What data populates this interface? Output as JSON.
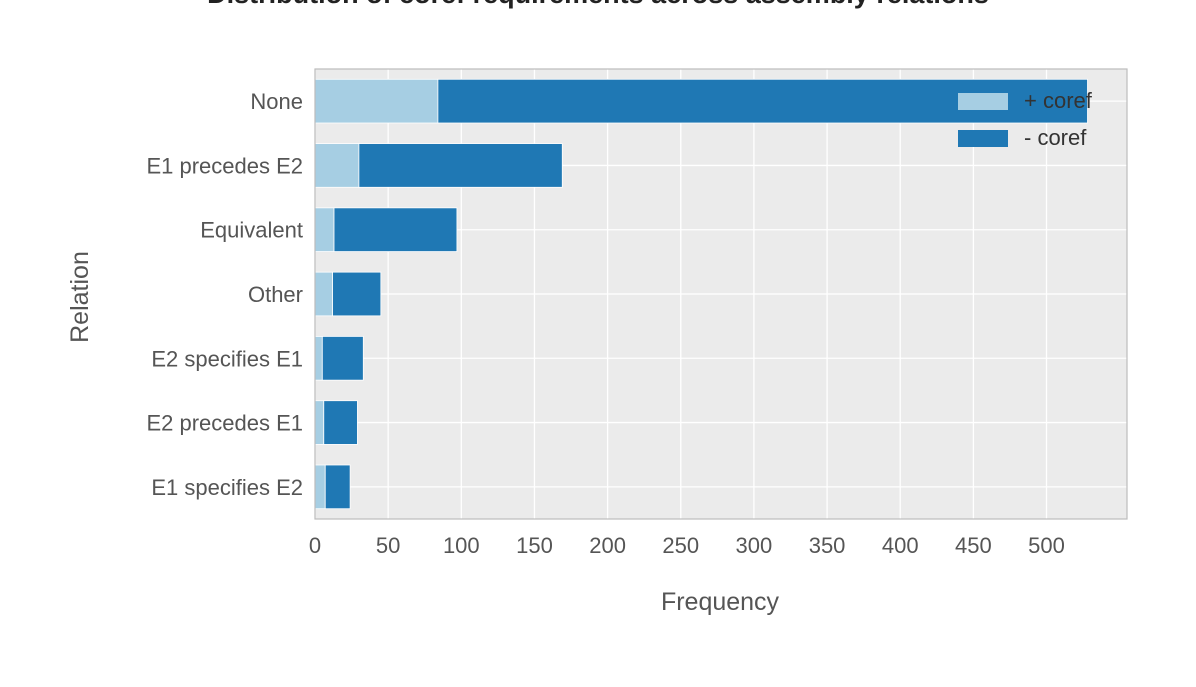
{
  "chart_data": {
    "type": "bar",
    "orientation": "horizontal",
    "stacked": true,
    "title": "Distribution of coref requirements across assembly relations",
    "xlabel": "Frequency",
    "ylabel": "Relation",
    "xlim": [
      0,
      555
    ],
    "xticks": [
      0,
      50,
      100,
      150,
      200,
      250,
      300,
      350,
      400,
      450,
      500
    ],
    "categories": [
      "E1 specifies E2",
      "E2 precedes E1",
      "E2 specifies E1",
      "Other",
      "Equivalent",
      "E1 precedes E2",
      "None"
    ],
    "series": [
      {
        "name": "+ coref",
        "color": "#a6cee3",
        "values": [
          7,
          6,
          5,
          12,
          13,
          30,
          84
        ]
      },
      {
        "name": "- coref",
        "color": "#1f78b4",
        "values": [
          17,
          23,
          28,
          33,
          84,
          139,
          444
        ]
      }
    ],
    "grid": true,
    "legend_position": "top-right",
    "background": "#ebebeb"
  }
}
